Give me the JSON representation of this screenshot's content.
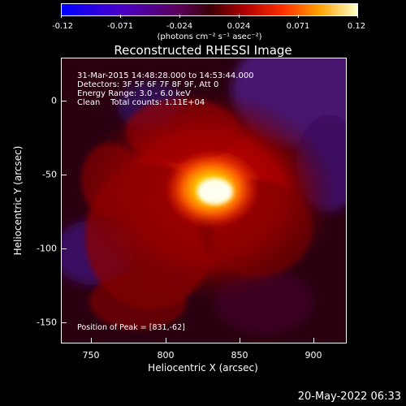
{
  "colorbar": {
    "tick_labels": [
      "-0.12",
      "-0.071",
      "-0.024",
      "0.024",
      "0.071",
      "0.12"
    ],
    "units_label": "(photons cm⁻² s⁻¹ asec⁻²)"
  },
  "image_title": "Reconstructed RHESSI Image",
  "info": {
    "time_range": "31-Mar-2015 14:48:28.000 to 14:53:44.000",
    "detectors": "Detectors: 3F 5F 6F 7F 8F 9F, Att 0",
    "energy_range": "Energy Range: 3.0 - 6.0 keV",
    "method_counts": "Clean    Total counts: 1.11E+04",
    "peak_position": "Position of Peak = [831,-62]"
  },
  "axes": {
    "xlabel": "Heliocentric X (arcsec)",
    "ylabel": "Heliocentric Y (arcsec)",
    "x_tick_labels": [
      "750",
      "800",
      "850",
      "900"
    ],
    "y_tick_labels": [
      "0",
      "-50",
      "-100",
      "-150"
    ]
  },
  "footer_timestamp": "20-May-2022 06:33",
  "chart_data": {
    "type": "heatmap",
    "title": "Reconstructed RHESSI Image",
    "xlabel": "Heliocentric X (arcsec)",
    "ylabel": "Heliocentric Y (arcsec)",
    "xlim": [
      730,
      922
    ],
    "ylim": [
      -166,
      26
    ],
    "color_scale": [
      -0.12,
      0.12
    ],
    "colormap": "heat",
    "peak": [
      831,
      -62
    ]
  }
}
